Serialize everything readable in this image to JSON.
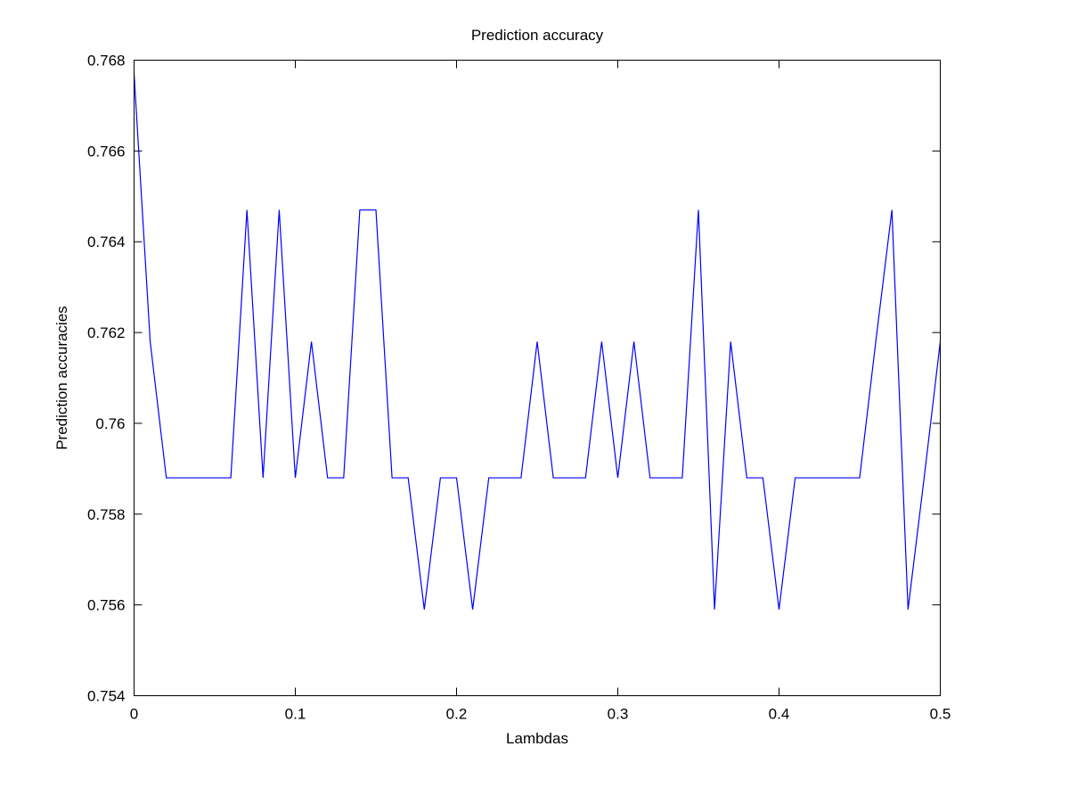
{
  "chart_data": {
    "type": "line",
    "title": "Prediction accuracy",
    "xlabel": "Lambdas",
    "ylabel": "Prediction accuracies",
    "xlim": [
      0,
      0.5
    ],
    "ylim": [
      0.754,
      0.768
    ],
    "xticks": [
      "0",
      "0.1",
      "0.2",
      "0.3",
      "0.4",
      "0.5"
    ],
    "yticks": [
      "0.754",
      "0.756",
      "0.758",
      "0.76",
      "0.762",
      "0.764",
      "0.766",
      "0.768"
    ],
    "grid": false,
    "legend": "none",
    "series": [
      {
        "color": "#0000ff",
        "x": [
          0,
          0.01,
          0.02,
          0.03,
          0.04,
          0.05,
          0.06,
          0.07,
          0.08,
          0.09,
          0.1,
          0.11,
          0.12,
          0.13,
          0.14,
          0.15,
          0.16,
          0.17,
          0.18,
          0.19,
          0.2,
          0.21,
          0.22,
          0.23,
          0.24,
          0.25,
          0.26,
          0.27,
          0.28,
          0.29,
          0.3,
          0.31,
          0.32,
          0.33,
          0.34,
          0.35,
          0.36,
          0.37,
          0.38,
          0.39,
          0.4,
          0.41,
          0.42,
          0.43,
          0.44,
          0.45,
          0.46,
          0.47,
          0.48,
          0.49,
          0.5
        ],
        "values": [
          0.7677,
          0.7618,
          0.7588,
          0.7588,
          0.7588,
          0.7588,
          0.7588,
          0.7647,
          0.7588,
          0.7647,
          0.7588,
          0.7618,
          0.7588,
          0.7588,
          0.7647,
          0.7647,
          0.7588,
          0.7588,
          0.7559,
          0.7588,
          0.7588,
          0.7559,
          0.7588,
          0.7588,
          0.7588,
          0.7618,
          0.7588,
          0.7588,
          0.7588,
          0.7618,
          0.7588,
          0.7618,
          0.7588,
          0.7588,
          0.7588,
          0.7647,
          0.7559,
          0.7618,
          0.7588,
          0.7588,
          0.7559,
          0.7588,
          0.7588,
          0.7588,
          0.7588,
          0.7588,
          0.7618,
          0.7647,
          0.7559,
          0.7588,
          0.7618
        ]
      }
    ]
  }
}
